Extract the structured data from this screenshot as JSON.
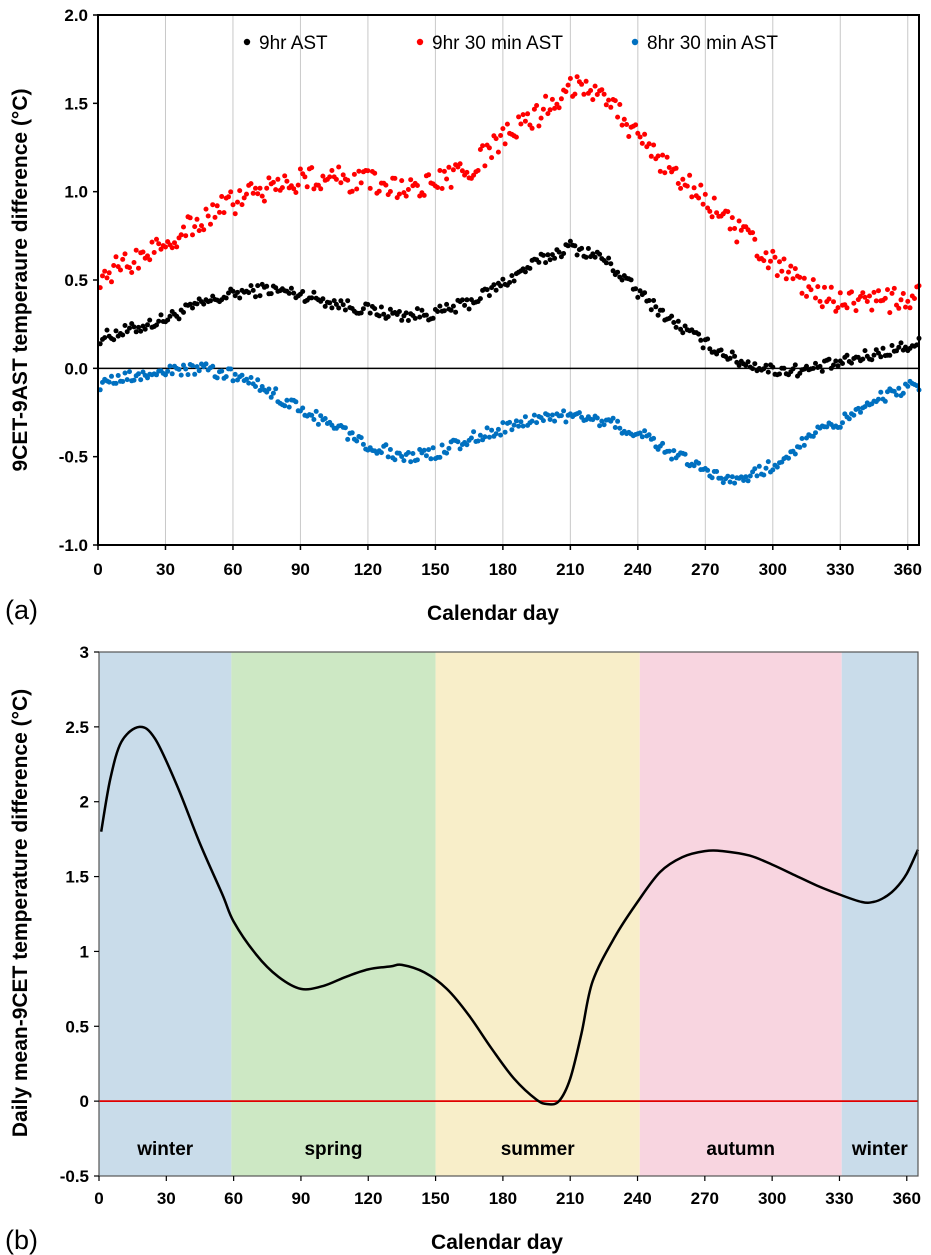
{
  "chart_data": [
    {
      "type": "scatter",
      "panel_label": "(a)",
      "xlabel": "Calendar day",
      "ylabel": "9CET-9AST temperaure difference (°C)",
      "xlim": [
        0,
        365
      ],
      "ylim": [
        -1.0,
        2.0
      ],
      "x_ticks": [
        0,
        30,
        60,
        90,
        120,
        150,
        180,
        210,
        240,
        270,
        300,
        330,
        360
      ],
      "y_ticks": [
        "2.0",
        "1.5",
        "1.0",
        "0.5",
        "0.0",
        "-0.5",
        "-1.0"
      ],
      "grid": "vertical",
      "legend_position": "top",
      "series": [
        {
          "name": "9hr AST",
          "color": "#000000",
          "x": [
            0,
            15,
            30,
            45,
            60,
            75,
            90,
            105,
            120,
            135,
            150,
            165,
            180,
            195,
            210,
            225,
            240,
            255,
            270,
            285,
            300,
            315,
            330,
            345,
            365
          ],
          "y": [
            0.17,
            0.22,
            0.28,
            0.36,
            0.42,
            0.45,
            0.42,
            0.37,
            0.33,
            0.3,
            0.31,
            0.37,
            0.48,
            0.6,
            0.69,
            0.62,
            0.43,
            0.27,
            0.14,
            0.04,
            -0.01,
            -0.01,
            0.03,
            0.08,
            0.14
          ]
        },
        {
          "name": "9hr 30 min AST",
          "color": "#ff0000",
          "x": [
            0,
            15,
            30,
            45,
            60,
            75,
            90,
            105,
            120,
            135,
            150,
            165,
            180,
            195,
            210,
            225,
            240,
            255,
            270,
            285,
            300,
            315,
            330,
            345,
            365
          ],
          "y": [
            0.52,
            0.6,
            0.72,
            0.83,
            0.94,
            1.02,
            1.07,
            1.08,
            1.05,
            1.02,
            1.04,
            1.12,
            1.3,
            1.43,
            1.6,
            1.58,
            1.3,
            1.12,
            0.95,
            0.77,
            0.6,
            0.45,
            0.38,
            0.37,
            0.4
          ]
        },
        {
          "name": "8hr 30 min AST",
          "color": "#0070c0",
          "x": [
            0,
            15,
            30,
            45,
            60,
            75,
            90,
            105,
            120,
            135,
            150,
            165,
            180,
            195,
            210,
            225,
            240,
            255,
            270,
            285,
            300,
            315,
            330,
            345,
            365
          ],
          "y": [
            -0.09,
            -0.05,
            -0.02,
            0.0,
            -0.04,
            -0.12,
            -0.23,
            -0.33,
            -0.43,
            -0.5,
            -0.48,
            -0.4,
            -0.34,
            -0.28,
            -0.27,
            -0.3,
            -0.36,
            -0.48,
            -0.58,
            -0.64,
            -0.55,
            -0.4,
            -0.3,
            -0.18,
            -0.09
          ]
        }
      ]
    },
    {
      "type": "line",
      "panel_label": "(b)",
      "xlabel": "Calendar day",
      "ylabel": "Daily mean-9CET temperature difference (°C)",
      "xlim": [
        0,
        365
      ],
      "ylim": [
        -0.5,
        3.0
      ],
      "x_ticks": [
        0,
        30,
        60,
        90,
        120,
        150,
        180,
        210,
        240,
        270,
        300,
        330,
        360
      ],
      "y_ticks": [
        "3",
        "2.5",
        "2",
        "1.5",
        "1",
        "0.5",
        "0",
        "-0.5"
      ],
      "seasons": [
        {
          "label": "winter",
          "start": 0,
          "end": 59,
          "color": "#c9dcea"
        },
        {
          "label": "spring",
          "start": 59,
          "end": 150,
          "color": "#cde8c4"
        },
        {
          "label": "summer",
          "start": 150,
          "end": 241,
          "color": "#f8eec9"
        },
        {
          "label": "autumn",
          "start": 241,
          "end": 331,
          "color": "#f8d5e0"
        },
        {
          "label": "winter",
          "start": 331,
          "end": 365,
          "color": "#c9dcea"
        }
      ],
      "reference_line": {
        "y": 0,
        "color": "#e00000"
      },
      "series": [
        {
          "color": "#000000",
          "x": [
            1,
            5,
            10,
            18,
            25,
            35,
            45,
            55,
            60,
            70,
            80,
            90,
            100,
            110,
            120,
            130,
            135,
            145,
            155,
            165,
            175,
            185,
            195,
            200,
            205,
            210,
            215,
            220,
            230,
            240,
            250,
            260,
            270,
            278,
            290,
            300,
            310,
            320,
            330,
            340,
            345,
            350,
            355,
            360,
            365
          ],
          "y": [
            1.8,
            2.15,
            2.4,
            2.5,
            2.42,
            2.1,
            1.72,
            1.38,
            1.2,
            0.98,
            0.83,
            0.75,
            0.77,
            0.83,
            0.88,
            0.9,
            0.91,
            0.86,
            0.75,
            0.57,
            0.35,
            0.15,
            0.01,
            -0.02,
            0.0,
            0.15,
            0.45,
            0.8,
            1.1,
            1.33,
            1.53,
            1.63,
            1.67,
            1.67,
            1.64,
            1.58,
            1.51,
            1.44,
            1.38,
            1.33,
            1.33,
            1.36,
            1.42,
            1.52,
            1.68
          ]
        }
      ]
    }
  ]
}
